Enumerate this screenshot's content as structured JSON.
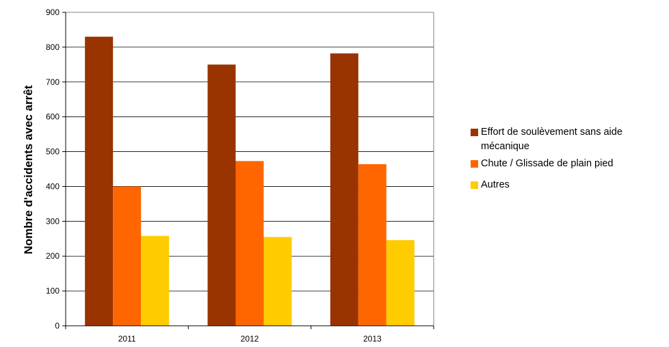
{
  "chart_data": {
    "type": "bar",
    "categories": [
      "2011",
      "2012",
      "2013"
    ],
    "series": [
      {
        "name": "Effort de soulèvement sans aide mécanique",
        "values": [
          830,
          750,
          782
        ],
        "color": "#993300"
      },
      {
        "name": "Chute / Glissade de plain pied",
        "values": [
          400,
          473,
          464
        ],
        "color": "#ff6600"
      },
      {
        "name": "Autres",
        "values": [
          258,
          255,
          246
        ],
        "color": "#ffcc00"
      }
    ],
    "ylabel": "Nombre d'accidents avec arrêt",
    "xlabel": "",
    "ylim": [
      0,
      900
    ],
    "yticks": [
      0,
      100,
      200,
      300,
      400,
      500,
      600,
      700,
      800,
      900
    ],
    "grid": true,
    "legend_position": "right"
  }
}
